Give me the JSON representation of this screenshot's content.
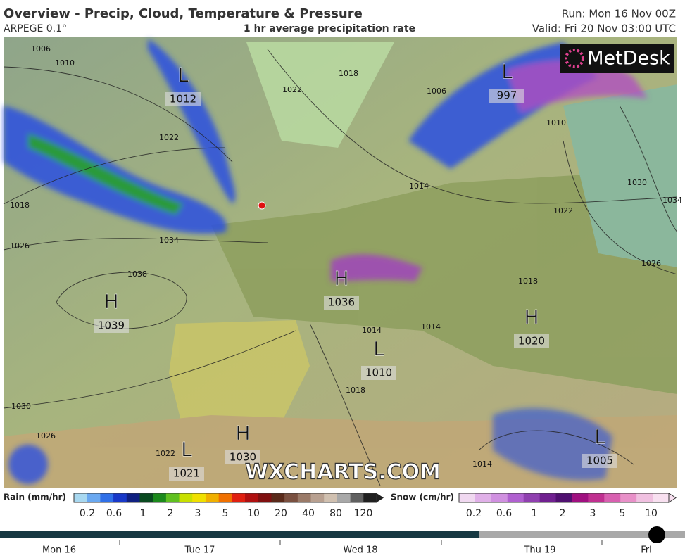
{
  "header": {
    "title": "Overview - Precip, Cloud, Temperature & Pressure",
    "model": "ARPEGE 0.1°",
    "subtitle": "1 hr average precipitation rate",
    "run": "Run: Mon 16 Nov 00Z",
    "valid": "Valid: Fri 20 Nov 03:00 UTC"
  },
  "map": {
    "logo": "MetDesk",
    "watermark": "WXCHARTS.COM",
    "pressure_centers": [
      {
        "type": "L",
        "value": 1012
      },
      {
        "type": "L",
        "value": 997
      },
      {
        "type": "H",
        "value": 1036
      },
      {
        "type": "H",
        "value": 1039
      },
      {
        "type": "L",
        "value": 1010
      },
      {
        "type": "H",
        "value": 1020
      },
      {
        "type": "H",
        "value": 1030
      },
      {
        "type": "L",
        "value": 1021
      },
      {
        "type": "L",
        "value": 1005
      }
    ],
    "isobar_labels": [
      1006,
      1010,
      1022,
      1018,
      1026,
      1034,
      1038,
      1022,
      1018,
      1006,
      1014,
      1022,
      1030,
      1034,
      1026,
      1018,
      1014,
      1014,
      1018,
      1030,
      1026,
      1022,
      1014,
      1010
    ]
  },
  "legend": {
    "rain_title": "Rain (mm/hr)",
    "rain_values": [
      0.2,
      0.6,
      1,
      2,
      3,
      5,
      10,
      20,
      40,
      80,
      120
    ],
    "snow_title": "Snow (cm/hr)",
    "snow_values": [
      0.2,
      0.6,
      1,
      2,
      3,
      5,
      10
    ]
  },
  "timeline": {
    "days": [
      "Mon 16",
      "Tue 17",
      "Wed 18",
      "Thu 19",
      "Fri"
    ]
  }
}
